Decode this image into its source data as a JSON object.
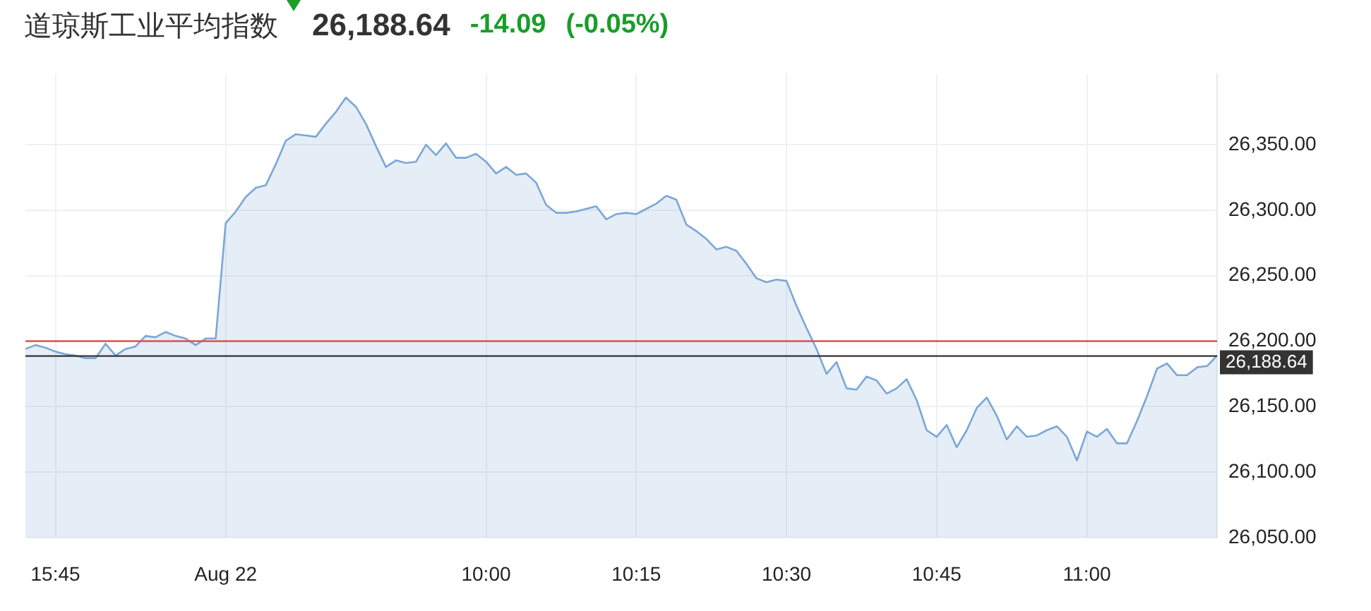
{
  "chart_data": {
    "type": "area",
    "title": "道琼斯工业平均指数",
    "subtitle": "26,188.64",
    "annotations": [
      "-14.09",
      "(-0.05%)"
    ],
    "categories": [
      null,
      null,
      null,
      "15:45",
      null,
      null,
      null,
      null,
      null,
      null,
      null,
      null,
      null,
      null,
      null,
      null,
      null,
      null,
      null,
      null,
      "Aug 22",
      null,
      null,
      null,
      null,
      null,
      null,
      null,
      null,
      null,
      null,
      null,
      null,
      null,
      null,
      null,
      null,
      null,
      null,
      null,
      null,
      null,
      null,
      null,
      null,
      null,
      "10:00",
      null,
      null,
      null,
      null,
      null,
      null,
      null,
      null,
      null,
      null,
      null,
      null,
      null,
      null,
      "10:15",
      null,
      null,
      null,
      null,
      null,
      null,
      null,
      null,
      null,
      null,
      null,
      null,
      null,
      null,
      "10:30",
      null,
      null,
      null,
      null,
      null,
      null,
      null,
      null,
      null,
      null,
      null,
      null,
      null,
      null,
      "10:45",
      null,
      null,
      null,
      null,
      null,
      null,
      null,
      null,
      null,
      null,
      null,
      null,
      null,
      null,
      "11:00",
      null,
      null,
      null,
      null,
      null,
      null,
      null,
      null,
      null,
      null,
      null,
      null,
      null
    ],
    "series": [
      {
        "color": "#7ba7d5",
        "values": [
          26194,
          26197,
          26195,
          26192,
          26190,
          26189,
          26187,
          26187,
          26198,
          26189,
          26194,
          26196,
          26204,
          26203,
          26207,
          26204,
          26202,
          26197,
          26202,
          26202,
          26290,
          26299,
          26310,
          26317,
          26319,
          26335,
          26353,
          26358,
          26357,
          26356,
          26366,
          26375,
          26386,
          26379,
          26366,
          26349,
          26333,
          26338,
          26336,
          26337,
          26350,
          26342,
          26351,
          26340,
          26340,
          26343,
          26337,
          26328,
          26333,
          26327,
          26328,
          26321,
          26304,
          26298,
          26298,
          26299,
          26301,
          26303,
          26293,
          26297,
          26298,
          26297,
          26301,
          26305,
          26311,
          26308,
          26289,
          26284,
          26278,
          26270,
          26272,
          26269,
          26259,
          26248,
          26245,
          26247,
          26246,
          26227,
          26210,
          26194,
          26175,
          26184,
          26164,
          26163,
          26173,
          26170,
          26160,
          26164,
          26171,
          26155,
          26132,
          26127,
          26136,
          26119,
          26132,
          26149,
          26157,
          26143,
          26125,
          26135,
          26127,
          26128,
          26132,
          26135,
          26127,
          26109,
          26131,
          26127,
          26133,
          26122,
          26122,
          26139,
          26158,
          26179,
          26183,
          26174,
          26174,
          26180,
          26181,
          26189
        ]
      }
    ],
    "ylim": [
      26050,
      26404
    ],
    "yticks": [
      {
        "value": 26050,
        "label": "26,050.00"
      },
      {
        "value": 26100,
        "label": "26,100.00"
      },
      {
        "value": 26150,
        "label": "26,150.00"
      },
      {
        "value": 26200,
        "label": "26,200.00"
      },
      {
        "value": 26250,
        "label": "26,250.00"
      },
      {
        "value": 26300,
        "label": "26,300.00"
      },
      {
        "value": 26350,
        "label": "26,350.00"
      }
    ],
    "ref_lines": [
      {
        "axis": "y",
        "value": 26200,
        "color": "#d9534f"
      },
      {
        "axis": "y",
        "value": 26188.64,
        "label": "26,188.64",
        "color": "#333333"
      }
    ],
    "grid": true,
    "legend": false,
    "marker": "none",
    "line_style": "solid"
  }
}
